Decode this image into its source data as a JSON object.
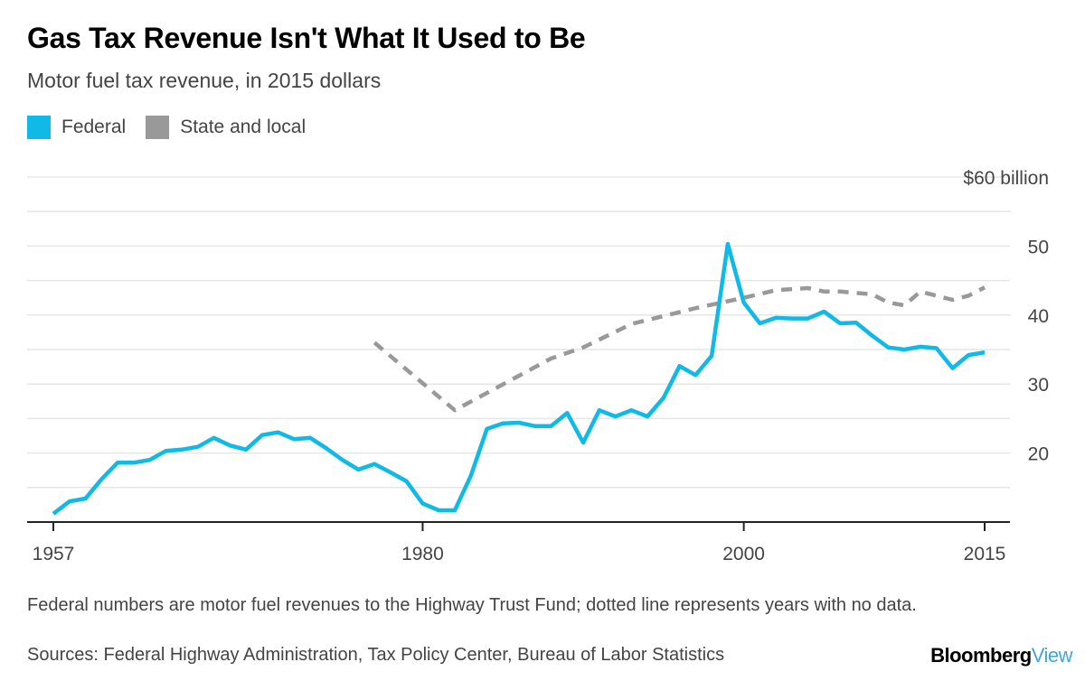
{
  "colors": {
    "federal": "#10b9e6",
    "state_local": "#999999",
    "grid": "#e6e6e6",
    "axis": "#222222"
  },
  "chart_data": {
    "type": "line",
    "title": "Gas Tax Revenue Isn't What It Used to Be",
    "subtitle": "Motor fuel tax revenue, in 2015 dollars",
    "ylabel": "$60 billion",
    "ylim": [
      10,
      60
    ],
    "grid": true,
    "legend_position": "top-left",
    "x_ticks": [
      1957,
      1980,
      2000,
      2015
    ],
    "x_tick_labels": [
      "1957",
      "1980",
      "2000",
      "2015"
    ],
    "y_ticks": [
      20,
      30,
      40,
      50,
      60
    ],
    "y_tick_labels": [
      "20",
      "30",
      "40",
      "50",
      "$60 billion"
    ],
    "series": [
      {
        "name": "Federal",
        "style": "solid",
        "x": [
          1957,
          1958,
          1959,
          1960,
          1961,
          1962,
          1963,
          1964,
          1965,
          1966,
          1967,
          1968,
          1969,
          1970,
          1971,
          1972,
          1973,
          1974,
          1975,
          1976,
          1977,
          1978,
          1979,
          1980,
          1981,
          1982,
          1983,
          1984,
          1985,
          1986,
          1987,
          1988,
          1989,
          1990,
          1991,
          1992,
          1993,
          1994,
          1995,
          1996,
          1997,
          1998,
          1999,
          2000,
          2001,
          2002,
          2003,
          2004,
          2005,
          2006,
          2007,
          2008,
          2009,
          2010,
          2011,
          2012,
          2013,
          2014,
          2015
        ],
        "values": [
          11.2,
          13.0,
          13.4,
          16.2,
          18.6,
          18.6,
          19.0,
          20.3,
          20.5,
          20.9,
          22.2,
          21.1,
          20.5,
          22.6,
          23.0,
          22.0,
          22.2,
          20.7,
          19.0,
          17.6,
          18.4,
          17.2,
          15.9,
          12.7,
          11.7,
          11.7,
          16.7,
          23.5,
          24.3,
          24.4,
          23.9,
          23.9,
          25.8,
          21.5,
          26.2,
          25.3,
          26.2,
          25.3,
          28.0,
          32.6,
          31.3,
          34.1,
          50.3,
          41.8,
          38.8,
          39.6,
          39.5,
          39.5,
          40.5,
          38.8,
          38.9,
          37.0,
          35.3,
          35.0,
          35.4,
          35.2,
          32.3,
          34.2,
          34.6
        ]
      },
      {
        "name": "State and local",
        "style": "dashed",
        "x": [
          1977,
          1982,
          1988,
          1990,
          1993,
          1997,
          2000,
          2002,
          2004,
          2005,
          2006,
          2008,
          2009,
          2010,
          2011,
          2013,
          2014,
          2015
        ],
        "values": [
          36.0,
          26.2,
          33.7,
          35.3,
          38.7,
          41.0,
          42.5,
          43.6,
          43.9,
          43.4,
          43.4,
          43.0,
          41.8,
          41.4,
          43.4,
          42.2,
          42.8,
          44.0
        ]
      }
    ]
  },
  "legend": {
    "federal": "Federal",
    "state_local": "State and local"
  },
  "footnote": "Federal numbers are motor fuel revenues to the Highway Trust Fund; dotted line represents years with no data.",
  "sources": "Sources: Federal Highway Administration, Tax Policy Center, Bureau of Labor Statistics",
  "brand": {
    "main": "Bloomberg",
    "suffix": "View"
  }
}
